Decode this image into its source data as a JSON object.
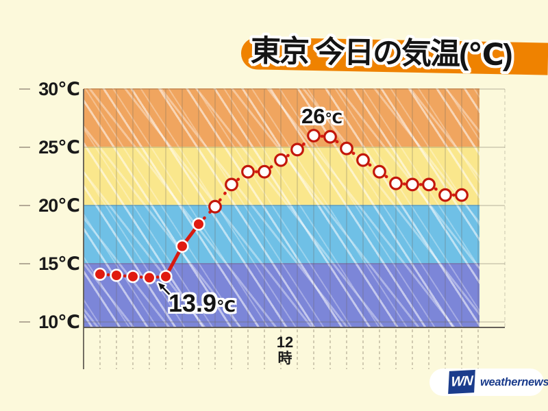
{
  "header": {
    "title": "東京 今日の気温(℃)",
    "banner_color": "#EF8200"
  },
  "chart_data": {
    "type": "line",
    "title": "東京 今日の気温(℃)",
    "x_unit": "時",
    "x_hours": [
      1,
      2,
      3,
      4,
      5,
      6,
      7,
      8,
      9,
      10,
      11,
      12,
      13,
      14,
      15,
      16,
      17,
      18,
      19,
      20,
      21,
      22,
      23
    ],
    "temps_c": [
      14.1,
      14.0,
      13.9,
      13.8,
      13.9,
      16.5,
      18.4,
      19.9,
      21.8,
      22.9,
      22.9,
      23.9,
      24.8,
      26.0,
      25.9,
      24.9,
      23.9,
      22.9,
      21.9,
      21.8,
      21.8,
      20.9,
      20.9
    ],
    "observed_count": 7,
    "solid_segment_indices": [
      4,
      5
    ],
    "line_color": "#D71A10",
    "point_fill_observed": "#E01B10",
    "point_stroke_forecast": "#C3170B",
    "xlim": [
      0,
      24
    ],
    "ylim": [
      10,
      30
    ],
    "grid": true,
    "yticks": [
      {
        "label": "30℃",
        "value": 30
      },
      {
        "label": "25℃",
        "value": 25
      },
      {
        "label": "20℃",
        "value": 20
      },
      {
        "label": "15℃",
        "value": 15
      },
      {
        "label": "10℃",
        "value": 10
      }
    ],
    "xtick": {
      "hour": "12",
      "unit": "時",
      "value": 12
    },
    "bands": [
      {
        "min": 25,
        "max": 30,
        "color": "#F0A55F"
      },
      {
        "min": 20,
        "max": 25,
        "color": "#FAE78C"
      },
      {
        "min": 15,
        "max": 20,
        "color": "#6FC0E6"
      },
      {
        "min": 10,
        "max": 15,
        "color": "#7C86D8"
      }
    ],
    "annotations": [
      {
        "value": "26",
        "unit": "℃",
        "point_index": 13,
        "placement": "above"
      },
      {
        "value": "13.9",
        "unit": "℃",
        "point_index": 4,
        "placement": "below-arrow"
      }
    ]
  },
  "logo": {
    "mark": "WN",
    "name": "weathernews",
    "color": "#1B3C8C"
  }
}
